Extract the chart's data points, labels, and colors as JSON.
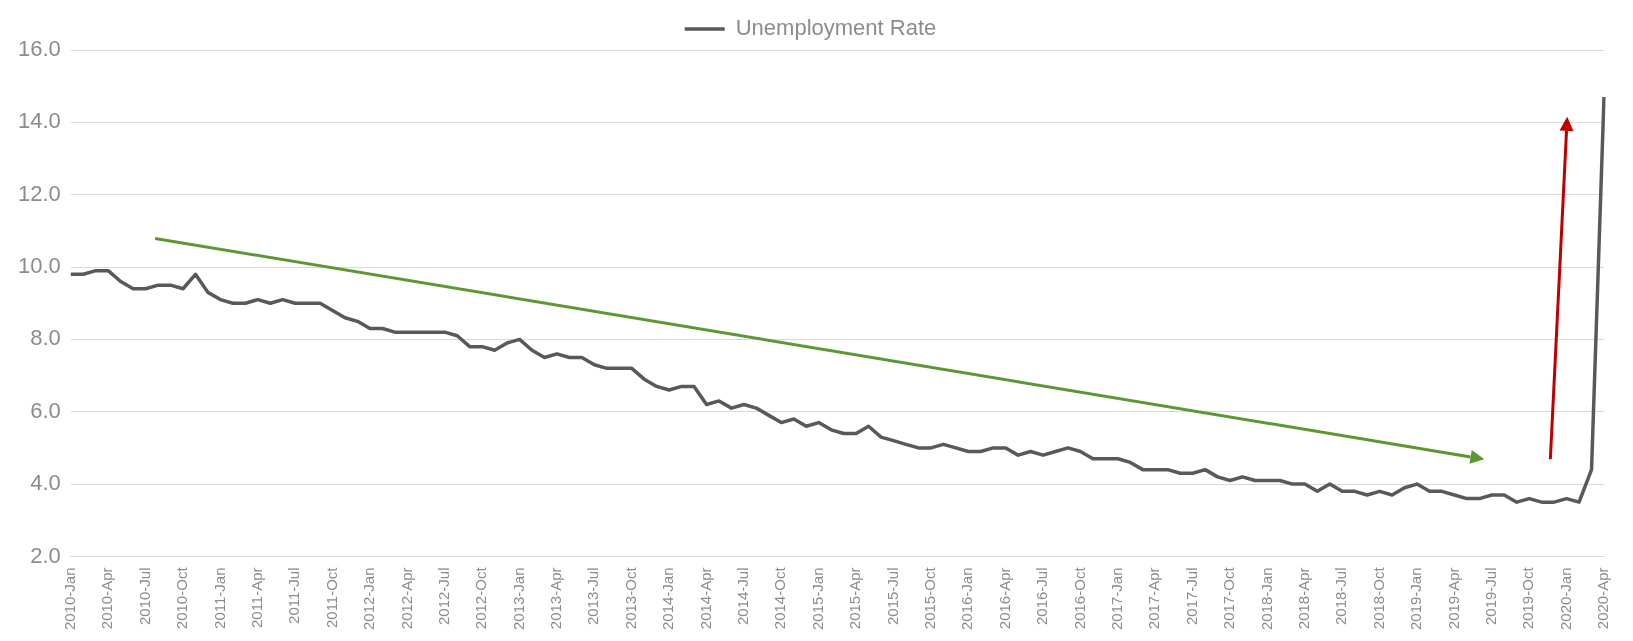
{
  "chart_data": {
    "type": "line",
    "categories": [
      "2010-Jan",
      null,
      null,
      "2010-Apr",
      null,
      null,
      "2010-Jul",
      null,
      null,
      "2010-Oct",
      null,
      null,
      "2011-Jan",
      null,
      null,
      "2011-Apr",
      null,
      null,
      "2011-Jul",
      null,
      null,
      "2011-Oct",
      null,
      null,
      "2012-Jan",
      null,
      null,
      "2012-Apr",
      null,
      null,
      "2012-Jul",
      null,
      null,
      "2012-Oct",
      null,
      null,
      "2013-Jan",
      null,
      null,
      "2013-Apr",
      null,
      null,
      "2013-Jul",
      null,
      null,
      "2013-Oct",
      null,
      null,
      "2014-Jan",
      null,
      null,
      "2014-Apr",
      null,
      null,
      "2014-Jul",
      null,
      null,
      "2014-Oct",
      null,
      null,
      "2015-Jan",
      null,
      null,
      "2015-Apr",
      null,
      null,
      "2015-Jul",
      null,
      null,
      "2015-Oct",
      null,
      null,
      "2016-Jan",
      null,
      null,
      "2016-Apr",
      null,
      null,
      "2016-Jul",
      null,
      null,
      "2016-Oct",
      null,
      null,
      "2017-Jan",
      null,
      null,
      "2017-Apr",
      null,
      null,
      "2017-Jul",
      null,
      null,
      "2017-Oct",
      null,
      null,
      "2018-Jan",
      null,
      null,
      "2018-Apr",
      null,
      null,
      "2018-Jul",
      null,
      null,
      "2018-Oct",
      null,
      null,
      "2019-Jan",
      null,
      null,
      "2019-Apr",
      null,
      null,
      "2019-Jul",
      null,
      null,
      "2019-Oct",
      null,
      null,
      "2020-Jan",
      null,
      null,
      "2020-Apr"
    ],
    "series": [
      {
        "name": "Unemployment Rate",
        "color": "#595959",
        "values": [
          9.8,
          9.8,
          9.9,
          9.9,
          9.6,
          9.4,
          9.4,
          9.5,
          9.5,
          9.4,
          9.8,
          9.3,
          9.1,
          9.0,
          9.0,
          9.1,
          9.0,
          9.1,
          9.0,
          9.0,
          9.0,
          8.8,
          8.6,
          8.5,
          8.3,
          8.3,
          8.2,
          8.2,
          8.2,
          8.2,
          8.2,
          8.1,
          7.8,
          7.8,
          7.7,
          7.9,
          8.0,
          7.7,
          7.5,
          7.6,
          7.5,
          7.5,
          7.3,
          7.2,
          7.2,
          7.2,
          6.9,
          6.7,
          6.6,
          6.7,
          6.7,
          6.2,
          6.3,
          6.1,
          6.2,
          6.1,
          5.9,
          5.7,
          5.8,
          5.6,
          5.7,
          5.5,
          5.4,
          5.4,
          5.6,
          5.3,
          5.2,
          5.1,
          5.0,
          5.0,
          5.1,
          5.0,
          4.9,
          4.9,
          5.0,
          5.0,
          4.8,
          4.9,
          4.8,
          4.9,
          5.0,
          4.9,
          4.7,
          4.7,
          4.7,
          4.6,
          4.4,
          4.4,
          4.4,
          4.3,
          4.3,
          4.4,
          4.2,
          4.1,
          4.2,
          4.1,
          4.1,
          4.1,
          4.0,
          4.0,
          3.8,
          4.0,
          3.8,
          3.8,
          3.7,
          3.8,
          3.7,
          3.9,
          4.0,
          3.8,
          3.8,
          3.7,
          3.6,
          3.6,
          3.7,
          3.7,
          3.5,
          3.6,
          3.5,
          3.5,
          3.6,
          3.5,
          4.4,
          14.7
        ]
      }
    ],
    "ylim": [
      2,
      16
    ],
    "yticks": [
      {
        "value": 2,
        "label": "2.0"
      },
      {
        "value": 4,
        "label": "4.0"
      },
      {
        "value": 6,
        "label": "6.0"
      },
      {
        "value": 8,
        "label": "8.0"
      },
      {
        "value": 10,
        "label": "10.0"
      },
      {
        "value": 12,
        "label": "12.0"
      },
      {
        "value": 14,
        "label": "14.0"
      },
      {
        "value": 16,
        "label": "16.0"
      }
    ],
    "grid": "y",
    "legend": "top",
    "marker": "none",
    "line_style": "solid"
  }
}
